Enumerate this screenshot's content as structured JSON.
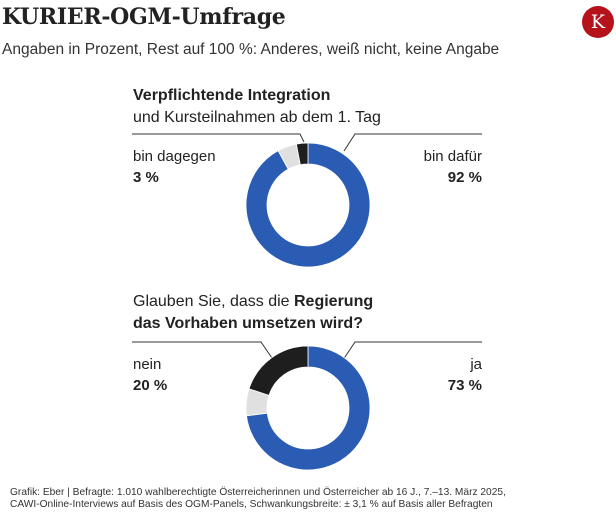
{
  "header": {
    "title": "KURIER-OGM-Umfrage",
    "subtitle": "Angaben in Prozent, Rest auf 100 %: Anderes, weiß nicht, keine Angabe",
    "logo_letter": "K",
    "logo_color": "#b5121b"
  },
  "colors": {
    "yes": "#2b5cb4",
    "no": "#1e1e1e",
    "other": "#e0e0e0",
    "leader": "#333333"
  },
  "chart_data": [
    {
      "type": "pie",
      "variant": "donut",
      "title_bold": "Verpflichtende Integration",
      "title_rest": "und Kursteilnahmen ab dem 1. Tag",
      "slices": [
        {
          "name": "bin dafür",
          "value": 92,
          "label": "92 %"
        },
        {
          "name": "Rest",
          "value": 5,
          "label": ""
        },
        {
          "name": "bin dagegen",
          "value": 3,
          "label": "3 %"
        }
      ]
    },
    {
      "type": "pie",
      "variant": "donut",
      "title_plain": "Glauben Sie, dass die ",
      "title_bold1": "Regierung",
      "title_bold2": "das Vorhaben umsetzen wird?",
      "slices": [
        {
          "name": "ja",
          "value": 73,
          "label": "73 %"
        },
        {
          "name": "Rest",
          "value": 7,
          "label": ""
        },
        {
          "name": "nein",
          "value": 20,
          "label": "20 %"
        }
      ]
    }
  ],
  "footer": {
    "line1": "Grafik: Eber | Befragte: 1.010 wahlberechtigte Österreicherinnen und Österreicher ab 16 J., 7.–13. März 2025,",
    "line2": "CAWI-Online-Interviews  auf Basis des OGM-Panels, Schwankungsbreite: ± 3,1 % auf Basis aller Befragten"
  }
}
